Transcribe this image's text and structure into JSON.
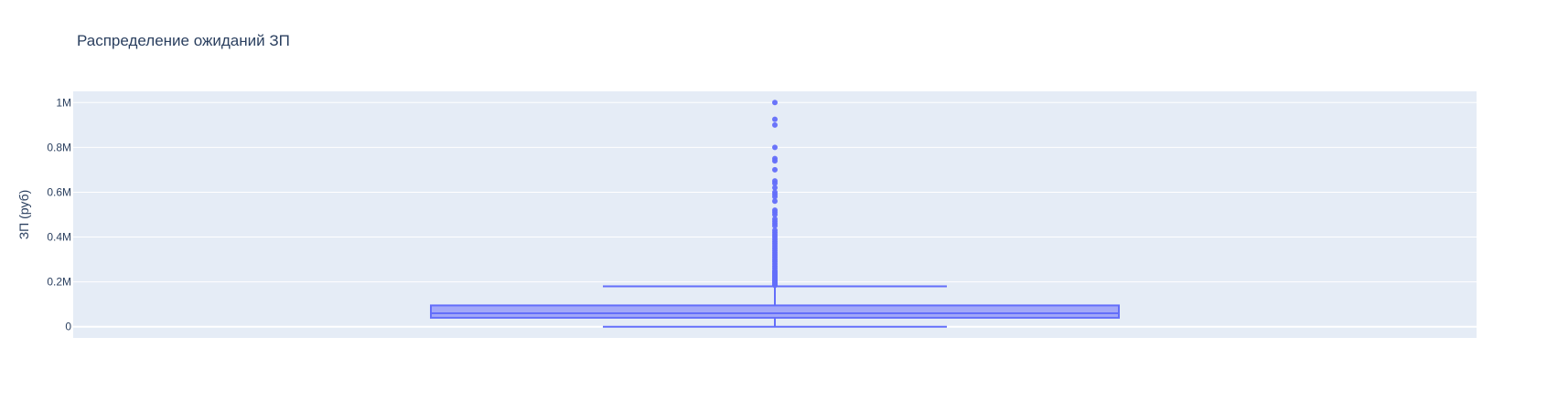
{
  "chart_data": {
    "type": "box",
    "title": "Распределение ожиданий ЗП",
    "xlabel": "",
    "ylabel": "ЗП (руб)",
    "ylim": [
      -50000,
      1050000
    ],
    "yticks": [
      {
        "value": 0,
        "label": "0"
      },
      {
        "value": 200000,
        "label": "0.2M"
      },
      {
        "value": 400000,
        "label": "0.4M"
      },
      {
        "value": 600000,
        "label": "0.6M"
      },
      {
        "value": 800000,
        "label": "0.8M"
      },
      {
        "value": 1000000,
        "label": "1M"
      }
    ],
    "grid": true,
    "legend": "none",
    "colors": {
      "plot_background": "#e5ecf6",
      "grid": "#ffffff",
      "box_fill": "#a3a8f8",
      "box_line": "#636efa",
      "text": "#2a3f5f"
    },
    "box": {
      "min": 0,
      "q1": 40000,
      "median": 60000,
      "q3": 95000,
      "upper_fence": 180000,
      "outliers": [
        1000000,
        925000,
        900000,
        800000,
        750000,
        740000,
        700000,
        650000,
        640000,
        620000,
        600000,
        590000,
        580000,
        560000,
        520000,
        510000,
        500000,
        480000,
        470000,
        460000,
        450000,
        430000,
        420000,
        410000,
        400000,
        390000,
        380000,
        370000,
        360000,
        350000,
        340000,
        330000,
        320000,
        310000,
        300000,
        290000,
        280000,
        270000,
        260000,
        250000,
        245000,
        240000,
        235000,
        230000,
        225000,
        220000,
        215000,
        210000,
        205000,
        200000,
        195000,
        190000,
        185000
      ]
    }
  }
}
